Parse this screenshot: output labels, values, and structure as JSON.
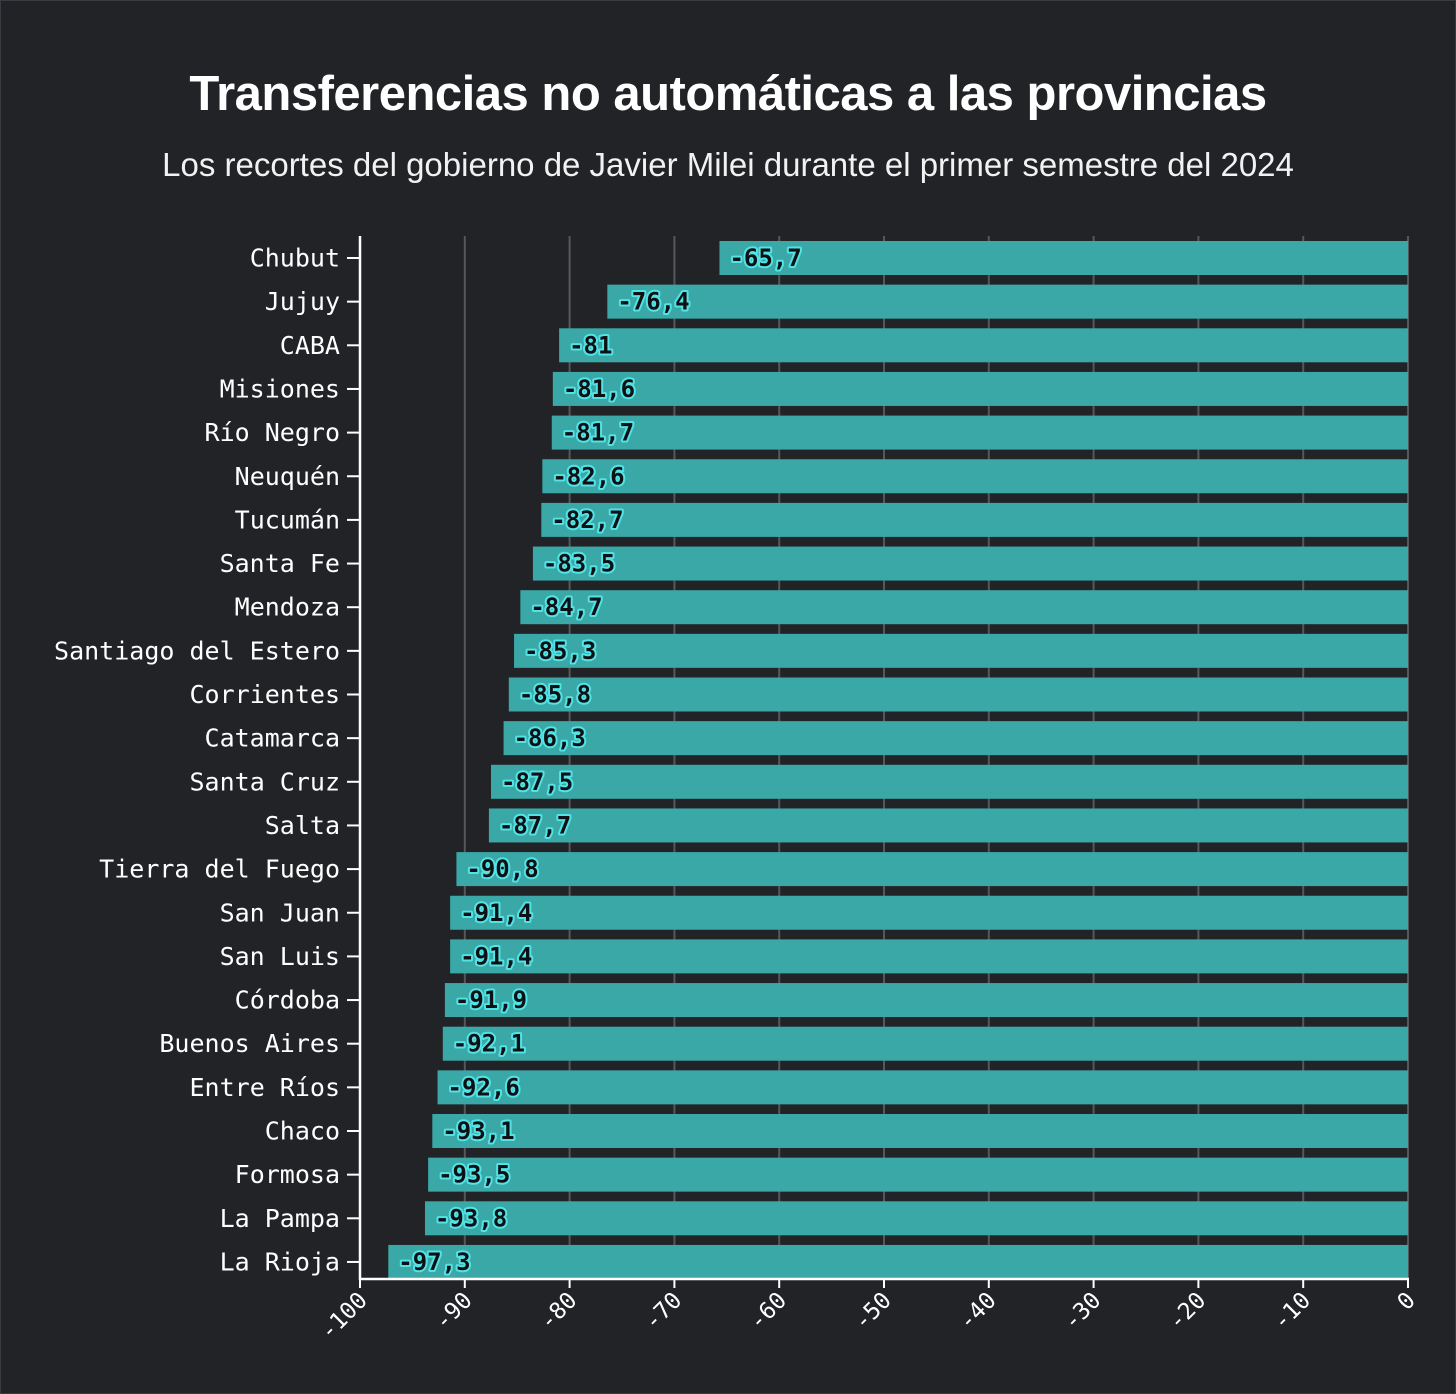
{
  "chart_data": {
    "type": "bar",
    "orientation": "horizontal",
    "title": "Transferencias no automáticas a las provincias",
    "subtitle": "Los recortes del gobierno de Javier Milei durante el primer semestre del 2024",
    "xlabel": "",
    "ylabel": "",
    "xlim": [
      -100,
      0
    ],
    "x_ticks": [
      "-100",
      "-90",
      "-80",
      "-70",
      "-60",
      "-50",
      "-40",
      "-30",
      "-20",
      "-10",
      "0"
    ],
    "grid": "vertical",
    "bar_color": "#3aa8a7",
    "label_halo_color": "#52e3e6",
    "background_color": "#222327",
    "categories": [
      "Chubut",
      "Jujuy",
      "CABA",
      "Misiones",
      "Río Negro",
      "Neuquén",
      "Tucumán",
      "Santa Fe",
      "Mendoza",
      "Santiago del Estero",
      "Corrientes",
      "Catamarca",
      "Santa Cruz",
      "Salta",
      "Tierra del Fuego",
      "San Juan",
      "San Luis",
      "Córdoba",
      "Buenos Aires",
      "Entre Ríos",
      "Chaco",
      "Formosa",
      "La Pampa",
      "La Rioja"
    ],
    "values": [
      -65.7,
      -76.4,
      -81,
      -81.6,
      -81.7,
      -82.6,
      -82.7,
      -83.5,
      -84.7,
      -85.3,
      -85.8,
      -86.3,
      -87.5,
      -87.7,
      -90.8,
      -91.4,
      -91.4,
      -91.9,
      -92.1,
      -92.6,
      -93.1,
      -93.5,
      -93.8,
      -97.3
    ],
    "value_labels": [
      "-65,7",
      "-76,4",
      "-81",
      "-81,6",
      "-81,7",
      "-82,6",
      "-82,7",
      "-83,5",
      "-84,7",
      "-85,3",
      "-85,8",
      "-86,3",
      "-87,5",
      "-87,7",
      "-90,8",
      "-91,4",
      "-91,4",
      "-91,9",
      "-92,1",
      "-92,6",
      "-93,1",
      "-93,5",
      "-93,8",
      "-97,3"
    ]
  }
}
